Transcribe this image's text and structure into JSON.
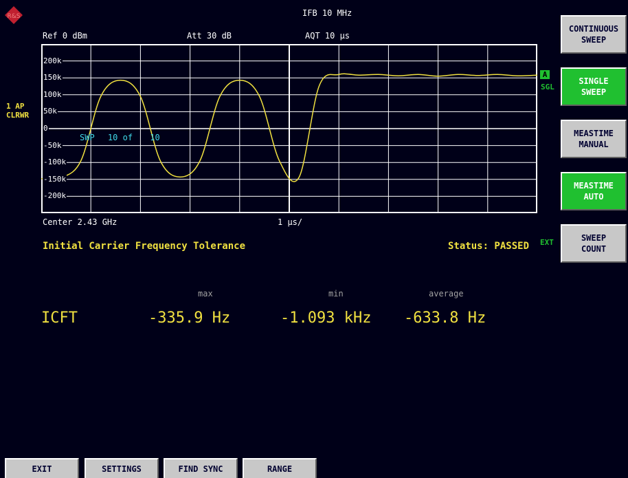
{
  "header": {
    "logo": "rs-logo-icon",
    "ifb": "IFB 10 MHz",
    "ref": "Ref  0 dBm",
    "att": "Att  30 dB",
    "aqt": "AQT 10 µs"
  },
  "trace_info": {
    "line1": "1 AP",
    "line2": "CLRWR"
  },
  "markers": {
    "a_badge": "A",
    "sgl_badge": "SGL",
    "ext_badge": "EXT"
  },
  "sweep_counter": {
    "swp": "SWP",
    "current": "10 of",
    "total": "10"
  },
  "chart_data": {
    "type": "line",
    "ytick_labels": [
      "200k",
      "150k",
      "100k",
      "50k",
      "0",
      "-50k",
      "-100k",
      "-150k",
      "-200k"
    ],
    "yticks": [
      200,
      150,
      100,
      50,
      0,
      -50,
      -100,
      -150,
      -200
    ],
    "ylim": [
      -250,
      250
    ],
    "xlim": [
      0,
      10
    ],
    "x_center_label": "Center 2.43 GHz",
    "x_div_label": "1 µs/",
    "grid": true,
    "series": [
      {
        "color": "#f0e040",
        "x": [
          0,
          0.4,
          0.8,
          1.2,
          1.6,
          2.0,
          2.4,
          2.8,
          3.2,
          3.6,
          4.0,
          4.4,
          4.8,
          5.2,
          5.6,
          6.0,
          6.4,
          6.8,
          7.2,
          7.6,
          8.0,
          8.4,
          8.8,
          9.2,
          9.6,
          10.0
        ],
        "values": [
          -148,
          -145,
          -95,
          95,
          143,
          95,
          -95,
          -143,
          -95,
          95,
          143,
          95,
          -95,
          -143,
          125,
          160,
          158,
          160,
          156,
          160,
          155,
          160,
          157,
          160,
          156,
          158
        ]
      }
    ]
  },
  "title": "Initial Carrier Frequency Tolerance",
  "status": "Status: PASSED",
  "results": {
    "name": "ICFT",
    "max_label": "max",
    "min_label": "min",
    "avg_label": "average",
    "max": "-335.9 Hz",
    "min": "-1.093 kHz",
    "avg": "-633.8 Hz"
  },
  "softkeys": [
    {
      "line1": "CONTINUOUS",
      "line2": "SWEEP",
      "active": false
    },
    {
      "line1": "SINGLE",
      "line2": "SWEEP",
      "active": true
    },
    {
      "line1": "MEASTIME",
      "line2": "MANUAL",
      "active": false
    },
    {
      "line1": "MEASTIME",
      "line2": "AUTO",
      "active": true
    },
    {
      "line1": "SWEEP",
      "line2": "COUNT",
      "active": false
    }
  ],
  "hotkeys": [
    "EXIT",
    "SETTINGS",
    "FIND SYNC",
    "RANGE"
  ]
}
